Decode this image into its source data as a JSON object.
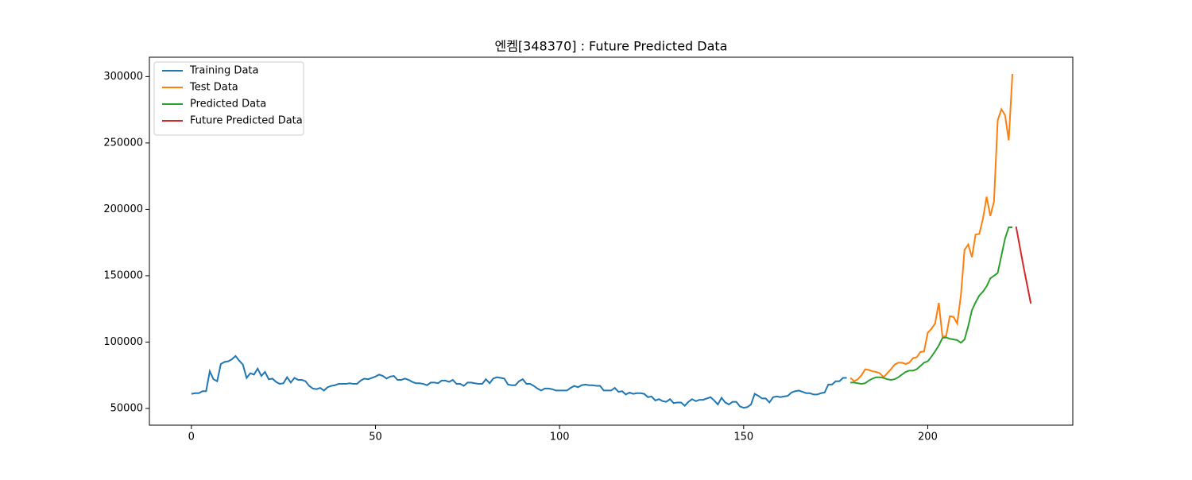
{
  "chart_data": {
    "type": "line",
    "title": "엔켐[348370] : Future Predicted Data",
    "xlim": [
      -11.4,
      239.4
    ],
    "xticks": [
      0,
      50,
      100,
      150,
      200
    ],
    "ylim": [
      37400,
      314600
    ],
    "yticks": [
      50000,
      100000,
      150000,
      200000,
      250000,
      300000
    ],
    "grid": false,
    "legend": "upper left",
    "series": [
      {
        "name": "Training Data",
        "color": "#1f77b4",
        "x": [
          0,
          1,
          2,
          3,
          4,
          5,
          6,
          7,
          8,
          9,
          10,
          11,
          12,
          13,
          14,
          15,
          16,
          17,
          18,
          19,
          20,
          21,
          22,
          23,
          24,
          25,
          26,
          27,
          28,
          29,
          30,
          31,
          32,
          33,
          34,
          35,
          36,
          37,
          38,
          39,
          40,
          41,
          42,
          43,
          44,
          45,
          46,
          47,
          48,
          49,
          50,
          51,
          52,
          53,
          54,
          55,
          56,
          57,
          58,
          59,
          60,
          61,
          62,
          63,
          64,
          65,
          66,
          67,
          68,
          69,
          70,
          71,
          72,
          73,
          74,
          75,
          76,
          77,
          78,
          79,
          80,
          81,
          82,
          83,
          84,
          85,
          86,
          87,
          88,
          89,
          90,
          91,
          92,
          93,
          94,
          95,
          96,
          97,
          98,
          99,
          100,
          101,
          102,
          103,
          104,
          105,
          106,
          107,
          108,
          109,
          110,
          111,
          112,
          113,
          114,
          115,
          116,
          117,
          118,
          119,
          120,
          121,
          122,
          123,
          124,
          125,
          126,
          127,
          128,
          129,
          130,
          131,
          132,
          133,
          134,
          135,
          136,
          137,
          138,
          139,
          140,
          141,
          142,
          143,
          144,
          145,
          146,
          147,
          148,
          149,
          150,
          151,
          152,
          153,
          154,
          155,
          156,
          157,
          158,
          159,
          160,
          161,
          162,
          163,
          164,
          165,
          166,
          167,
          168,
          169,
          170,
          171,
          172,
          173,
          174,
          175,
          176,
          177,
          178
        ],
        "values": [
          61000,
          61500,
          61500,
          63000,
          63000,
          78000,
          72000,
          70500,
          83500,
          85000,
          85500,
          87000,
          89500,
          86000,
          83000,
          73000,
          76500,
          75500,
          80000,
          74500,
          77500,
          72000,
          72500,
          70000,
          68500,
          69000,
          73500,
          69500,
          73000,
          71500,
          71500,
          70500,
          67000,
          65000,
          64500,
          65500,
          63500,
          66000,
          67000,
          67500,
          68500,
          68500,
          68500,
          69000,
          68500,
          68500,
          71000,
          72500,
          72000,
          73000,
          74000,
          75500,
          74500,
          72500,
          74000,
          74500,
          71500,
          71500,
          72500,
          71500,
          70000,
          69000,
          69000,
          68500,
          67500,
          69500,
          69500,
          69000,
          71000,
          71000,
          70000,
          71500,
          68500,
          68500,
          67000,
          69500,
          69500,
          69000,
          68500,
          68500,
          72000,
          69000,
          72500,
          73500,
          73000,
          72500,
          68000,
          67500,
          67500,
          70500,
          72000,
          68500,
          68500,
          67000,
          65000,
          63500,
          65000,
          65000,
          64500,
          63500,
          63500,
          63500,
          63500,
          65500,
          67000,
          66000,
          67500,
          68000,
          67500,
          67500,
          67000,
          67000,
          63500,
          63500,
          63500,
          65500,
          62500,
          63000,
          60500,
          62000,
          61000,
          61500,
          61500,
          61000,
          58500,
          59000,
          56000,
          57000,
          55500,
          55000,
          57000,
          54000,
          54500,
          54500,
          52000,
          55000,
          57000,
          55500,
          56500,
          56500,
          57500,
          58500,
          56000,
          53000,
          58000,
          54500,
          53000,
          55000,
          55000,
          51500,
          50500,
          51000,
          53000,
          61000,
          59500,
          57500,
          57500,
          54500,
          58500,
          59000,
          58500,
          59000,
          59500,
          62000,
          63000,
          63500,
          62500,
          61500,
          61500,
          60500,
          60500,
          61500,
          62000,
          68000,
          68000,
          70500,
          70500,
          73000,
          73000
        ]
      },
      {
        "name": "Test Data",
        "color": "#ff7f0e",
        "x": [
          179,
          180,
          181,
          182,
          183,
          184,
          185,
          186,
          187,
          188,
          189,
          190,
          191,
          192,
          193,
          194,
          195,
          196,
          197,
          198,
          199,
          200,
          201,
          202,
          203,
          204,
          205,
          206,
          207,
          208,
          209,
          210,
          211,
          212,
          213,
          214,
          215,
          216,
          217,
          218,
          219,
          220,
          221,
          222,
          223
        ],
        "values": [
          73000,
          70500,
          72000,
          75000,
          79500,
          79000,
          78000,
          77500,
          76500,
          73500,
          76500,
          79500,
          83000,
          84500,
          84500,
          83500,
          84500,
          88000,
          88500,
          92500,
          93000,
          107000,
          110000,
          114000,
          129500,
          104000,
          104500,
          119500,
          119000,
          114000,
          135000,
          169500,
          173500,
          164000,
          181000,
          181500,
          193000,
          209500,
          195000,
          206000,
          267000,
          275500,
          271000,
          252000,
          302000
        ]
      },
      {
        "name": "Predicted Data",
        "color": "#2ca02c",
        "x": [
          179,
          180,
          181,
          182,
          183,
          184,
          185,
          186,
          187,
          188,
          189,
          190,
          191,
          192,
          193,
          194,
          195,
          196,
          197,
          198,
          199,
          200,
          201,
          202,
          203,
          204,
          205,
          206,
          207,
          208,
          209,
          210,
          211,
          212,
          213,
          214,
          215,
          216,
          217,
          218,
          219,
          220,
          221,
          222,
          223
        ],
        "values": [
          69500,
          69500,
          69000,
          68500,
          69000,
          71000,
          72500,
          73500,
          73500,
          73000,
          72000,
          71500,
          72000,
          73500,
          75500,
          77500,
          78500,
          78500,
          79500,
          82000,
          84500,
          85500,
          89000,
          93000,
          97500,
          103000,
          103500,
          102500,
          102000,
          101500,
          99500,
          102000,
          112000,
          124000,
          130000,
          135000,
          138000,
          142000,
          148000,
          150000,
          152000,
          165000,
          178000,
          186500,
          186500
        ]
      },
      {
        "name": "Future Predicted Data",
        "color": "#d62728",
        "x": [
          224,
          225,
          226,
          227,
          228
        ],
        "values": [
          187000,
          172000,
          157000,
          143000,
          129000
        ]
      }
    ]
  }
}
